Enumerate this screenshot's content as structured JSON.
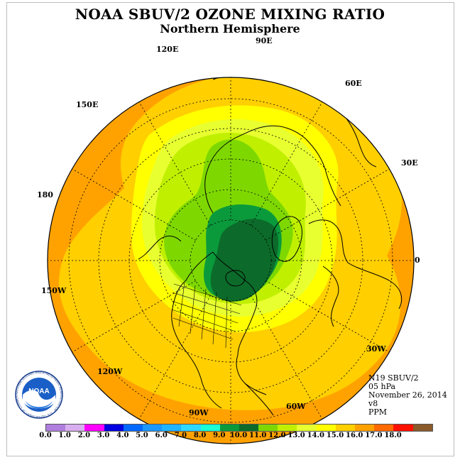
{
  "header": {
    "title": "NOAA SBUV/2 OZONE MIXING RATIO",
    "subtitle": "Northern Hemisphere"
  },
  "longitude_labels": [
    "90E",
    "60E",
    "30E",
    "0",
    "30W",
    "60W",
    "90W",
    "120W",
    "150W",
    "180",
    "150E",
    "120E"
  ],
  "info": {
    "instrument": "N19 SBUV/2",
    "pressure": "05 hPa",
    "date": "November 26, 2014",
    "version": "v8",
    "units": "PPM"
  },
  "logo": {
    "text": "NOAA",
    "ring_text": "NATIONAL OCEANIC AND ATMOSPHERIC ADMINISTRATION · U.S. DEPARTMENT OF COMMERCE"
  },
  "colorbar": {
    "colors": [
      "#b07ee0",
      "#d9aef0",
      "#ff00ff",
      "#0000e0",
      "#0068ff",
      "#1a98ff",
      "#1fb4ff",
      "#2fd8ff",
      "#19ffd6",
      "#0a9a3c",
      "#0c6b2a",
      "#7ed800",
      "#c0f000",
      "#e8ff30",
      "#ffff00",
      "#ffcf00",
      "#ffa200",
      "#ff6a00",
      "#ff1000",
      "#8b5a2a"
    ],
    "tick_labels": [
      "0.0",
      "1.0",
      "2.0",
      "3.0",
      "4.0",
      "5.0",
      "6.0",
      "7.0",
      "8.0",
      "9.0",
      "10.0",
      "11.0",
      "12.0",
      "13.0",
      "14.0",
      "15.0",
      "16.0",
      "17.0",
      "18.0"
    ]
  },
  "map_colors": {
    "outer_orange": "#ffa200",
    "orange_light": "#ffcf00",
    "yellow": "#ffff00",
    "yellow_green": "#e8ff30",
    "light_green": "#c0f000",
    "green": "#7ed800",
    "dark_green": "#0a9a3c",
    "darkest_green": "#0c6b2a"
  }
}
